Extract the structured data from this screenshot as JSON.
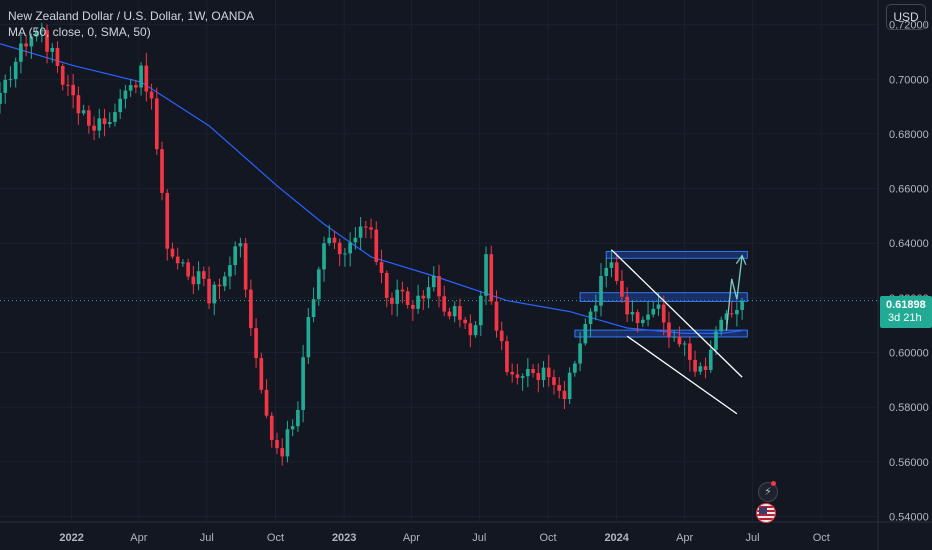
{
  "legend": {
    "title": "New Zealand Dollar / U.S. Dollar, 1W, OANDA",
    "indicator": "MA (50, close, 0, SMA, 50)"
  },
  "currency_button": "USD",
  "price_tag": {
    "price": "0.61898",
    "countdown": "3d 21h"
  },
  "colors": {
    "background": "#131722",
    "up": "#22ab94",
    "down": "#f23645",
    "ma": "#2962ff",
    "grid": "#1c2030",
    "zone_fill": "#2962ff",
    "zone_stroke": "#3179f5",
    "trendline": "#ffffff",
    "projection": "#80cbc4"
  },
  "icons": {
    "alert": "bolt-icon",
    "region": "us-flag-icon"
  },
  "chart_data": {
    "type": "candlestick",
    "title": "New Zealand Dollar / U.S. Dollar, 1W, OANDA",
    "y_ticks": [
      "0.72000",
      "0.70000",
      "0.68000",
      "0.66000",
      "0.64000",
      "0.62000",
      "0.60000",
      "0.58000",
      "0.56000",
      "0.54000"
    ],
    "ylim": [
      0.538,
      0.729
    ],
    "x_ticks": [
      "2022",
      "Apr",
      "Jul",
      "Oct",
      "2023",
      "Apr",
      "Jul",
      "Oct",
      "2024",
      "Apr",
      "Jul",
      "Oct"
    ],
    "x_tick_dates": [
      "2022-01-01",
      "2022-04-01",
      "2022-07-01",
      "2022-10-01",
      "2023-01-01",
      "2023-04-01",
      "2023-07-01",
      "2023-10-01",
      "2024-01-01",
      "2024-04-01",
      "2024-07-01",
      "2024-10-01"
    ],
    "xlim": [
      "2021-09-27",
      "2024-12-16"
    ],
    "current_price": 0.61898,
    "anchors": [
      [
        "2021-09-27",
        0.695
      ],
      [
        "2021-11-01",
        0.712
      ],
      [
        "2021-11-22",
        0.718
      ],
      [
        "2021-12-20",
        0.698
      ],
      [
        "2022-01-24",
        0.683
      ],
      [
        "2022-02-28",
        0.688
      ],
      [
        "2022-03-28",
        0.697
      ],
      [
        "2022-04-04",
        0.705
      ],
      [
        "2022-04-18",
        0.693
      ],
      [
        "2022-05-09",
        0.638
      ],
      [
        "2022-05-30",
        0.633
      ],
      [
        "2022-06-13",
        0.625
      ],
      [
        "2022-06-27",
        0.627
      ],
      [
        "2022-07-04",
        0.618
      ],
      [
        "2022-08-01",
        0.632
      ],
      [
        "2022-08-15",
        0.64
      ],
      [
        "2022-09-05",
        0.598
      ],
      [
        "2022-09-26",
        0.568
      ],
      [
        "2022-10-10",
        0.562
      ],
      [
        "2022-10-31",
        0.579
      ],
      [
        "2022-11-14",
        0.613
      ],
      [
        "2022-12-05",
        0.64
      ],
      [
        "2022-12-26",
        0.636
      ],
      [
        "2023-01-16",
        0.642
      ],
      [
        "2023-02-06",
        0.645
      ],
      [
        "2023-02-27",
        0.62
      ],
      [
        "2023-03-13",
        0.623
      ],
      [
        "2023-04-03",
        0.616
      ],
      [
        "2023-05-01",
        0.628
      ],
      [
        "2023-05-15",
        0.615
      ],
      [
        "2023-06-05",
        0.612
      ],
      [
        "2023-06-26",
        0.61
      ],
      [
        "2023-07-10",
        0.636
      ],
      [
        "2023-07-24",
        0.608
      ],
      [
        "2023-08-14",
        0.592
      ],
      [
        "2023-09-04",
        0.594
      ],
      [
        "2023-10-02",
        0.591
      ],
      [
        "2023-10-23",
        0.583
      ],
      [
        "2023-11-06",
        0.596
      ],
      [
        "2023-11-27",
        0.615
      ],
      [
        "2023-12-11",
        0.628
      ],
      [
        "2023-12-25",
        0.633
      ],
      [
        "2024-01-15",
        0.614
      ],
      [
        "2024-02-05",
        0.612
      ],
      [
        "2024-02-19",
        0.616
      ],
      [
        "2024-03-04",
        0.611
      ],
      [
        "2024-03-25",
        0.603
      ],
      [
        "2024-04-15",
        0.593
      ],
      [
        "2024-04-22",
        0.595
      ],
      [
        "2024-05-06",
        0.601
      ],
      [
        "2024-05-20",
        0.612
      ],
      [
        "2024-06-03",
        0.614
      ],
      [
        "2024-06-17",
        0.619
      ]
    ],
    "ma_series": {
      "name": "MA (50, close, 0, SMA, 50)",
      "points": [
        [
          "2021-09-27",
          0.713
        ],
        [
          "2022-01-03",
          0.705
        ],
        [
          "2022-04-04",
          0.699
        ],
        [
          "2022-07-04",
          0.683
        ],
        [
          "2022-10-03",
          0.661
        ],
        [
          "2022-12-05",
          0.647
        ],
        [
          "2023-02-06",
          0.635
        ],
        [
          "2023-05-01",
          0.628
        ],
        [
          "2023-08-07",
          0.619
        ],
        [
          "2023-10-30",
          0.615
        ],
        [
          "2024-01-15",
          0.609
        ],
        [
          "2024-04-01",
          0.607
        ],
        [
          "2024-05-20",
          0.607
        ],
        [
          "2024-06-17",
          0.608
        ]
      ]
    },
    "zones": [
      {
        "x0": "2023-12-18",
        "x1": "2024-06-24",
        "y0": 0.6345,
        "y1": 0.637
      },
      {
        "x0": "2023-11-13",
        "x1": "2024-06-24",
        "y0": 0.6187,
        "y1": 0.6219
      },
      {
        "x0": "2023-11-06",
        "x1": "2024-06-24",
        "y0": 0.6057,
        "y1": 0.6082
      }
    ],
    "trendlines": [
      {
        "x0": "2023-12-25",
        "y0": 0.6376,
        "x1": "2024-06-17",
        "y1": 0.591
      },
      {
        "x0": "2024-01-15",
        "y0": 0.606,
        "x1": "2024-06-10",
        "y1": 0.5776
      }
    ],
    "projection": [
      [
        "2024-05-27",
        0.608
      ],
      [
        "2024-06-03",
        0.627
      ],
      [
        "2024-06-10",
        0.6195
      ],
      [
        "2024-06-17",
        0.6355
      ]
    ]
  }
}
